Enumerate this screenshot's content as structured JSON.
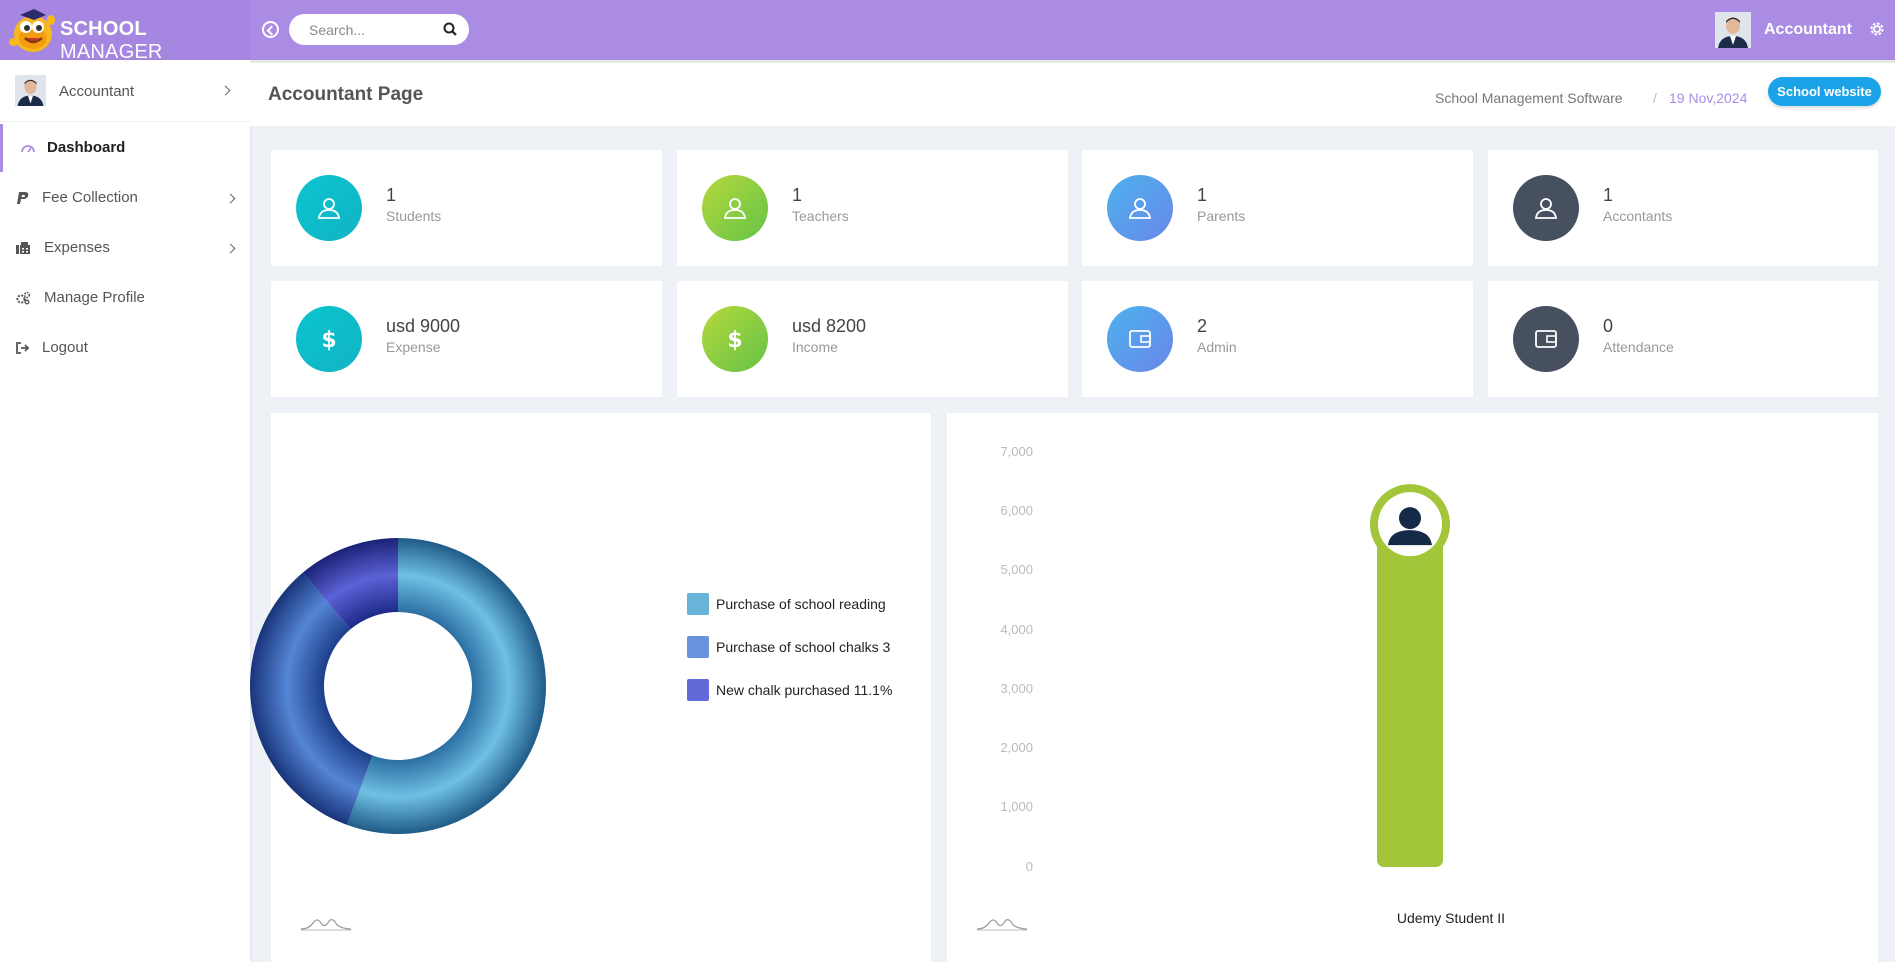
{
  "header": {
    "logo_bold": "SCHOOL",
    "logo_light": " MANAGER",
    "search_placeholder": "Search...",
    "user_name": "Accountant"
  },
  "sidebar": {
    "profile_name": "Accountant",
    "items": [
      {
        "label": "Dashboard",
        "icon": "dashboard-icon",
        "active": true
      },
      {
        "label": "Fee Collection",
        "icon": "paypal-icon",
        "has_submenu": true
      },
      {
        "label": "Expenses",
        "icon": "fax-icon",
        "has_submenu": true
      },
      {
        "label": "Manage Profile",
        "icon": "gears-icon"
      },
      {
        "label": "Logout",
        "icon": "sign-out-icon"
      }
    ]
  },
  "page": {
    "title": "Accountant Page",
    "breadcrumb_app": "School Management Software",
    "breadcrumb_sep": "/",
    "date": "19 Nov,2024",
    "website_button": "School website"
  },
  "stats": [
    {
      "value": "1",
      "label": "Students",
      "icon": "user-icon",
      "color": "cyan"
    },
    {
      "value": "1",
      "label": "Teachers",
      "icon": "user-icon",
      "color": "green"
    },
    {
      "value": "1",
      "label": "Parents",
      "icon": "user-icon",
      "color": "blue"
    },
    {
      "value": "1",
      "label": "Accontants",
      "icon": "user-icon",
      "color": "dark"
    },
    {
      "value": "usd 9000",
      "label": "Expense",
      "icon": "dollar-icon",
      "color": "cyan"
    },
    {
      "value": "usd 8200",
      "label": "Income",
      "icon": "dollar-icon",
      "color": "green"
    },
    {
      "value": "2",
      "label": "Admin",
      "icon": "wallet-icon",
      "color": "blue"
    },
    {
      "value": "0",
      "label": "Attendance",
      "icon": "wallet-icon",
      "color": "dark"
    }
  ],
  "colors": {
    "topbar": "#ab8ce4",
    "accent": "#1aa3e8",
    "bar": "#a2c53a"
  },
  "chart_data": [
    {
      "type": "pie",
      "legend": [
        "Purchase of school reading",
        "Purchase of school chalks  3",
        "New chalk purchased  11.1%"
      ],
      "values": [
        55.6,
        33.3,
        11.1
      ],
      "colors": [
        "#5aaed6",
        "#5a86d8",
        "#5b62d6"
      ]
    },
    {
      "type": "bar",
      "categories": [
        "Udemy Student II"
      ],
      "values": [
        5800
      ],
      "yticks": [
        "7,000",
        "6,000",
        "5,000",
        "4,000",
        "3,000",
        "2,000",
        "1,000",
        "0"
      ],
      "ylim": [
        0,
        7000
      ]
    }
  ]
}
